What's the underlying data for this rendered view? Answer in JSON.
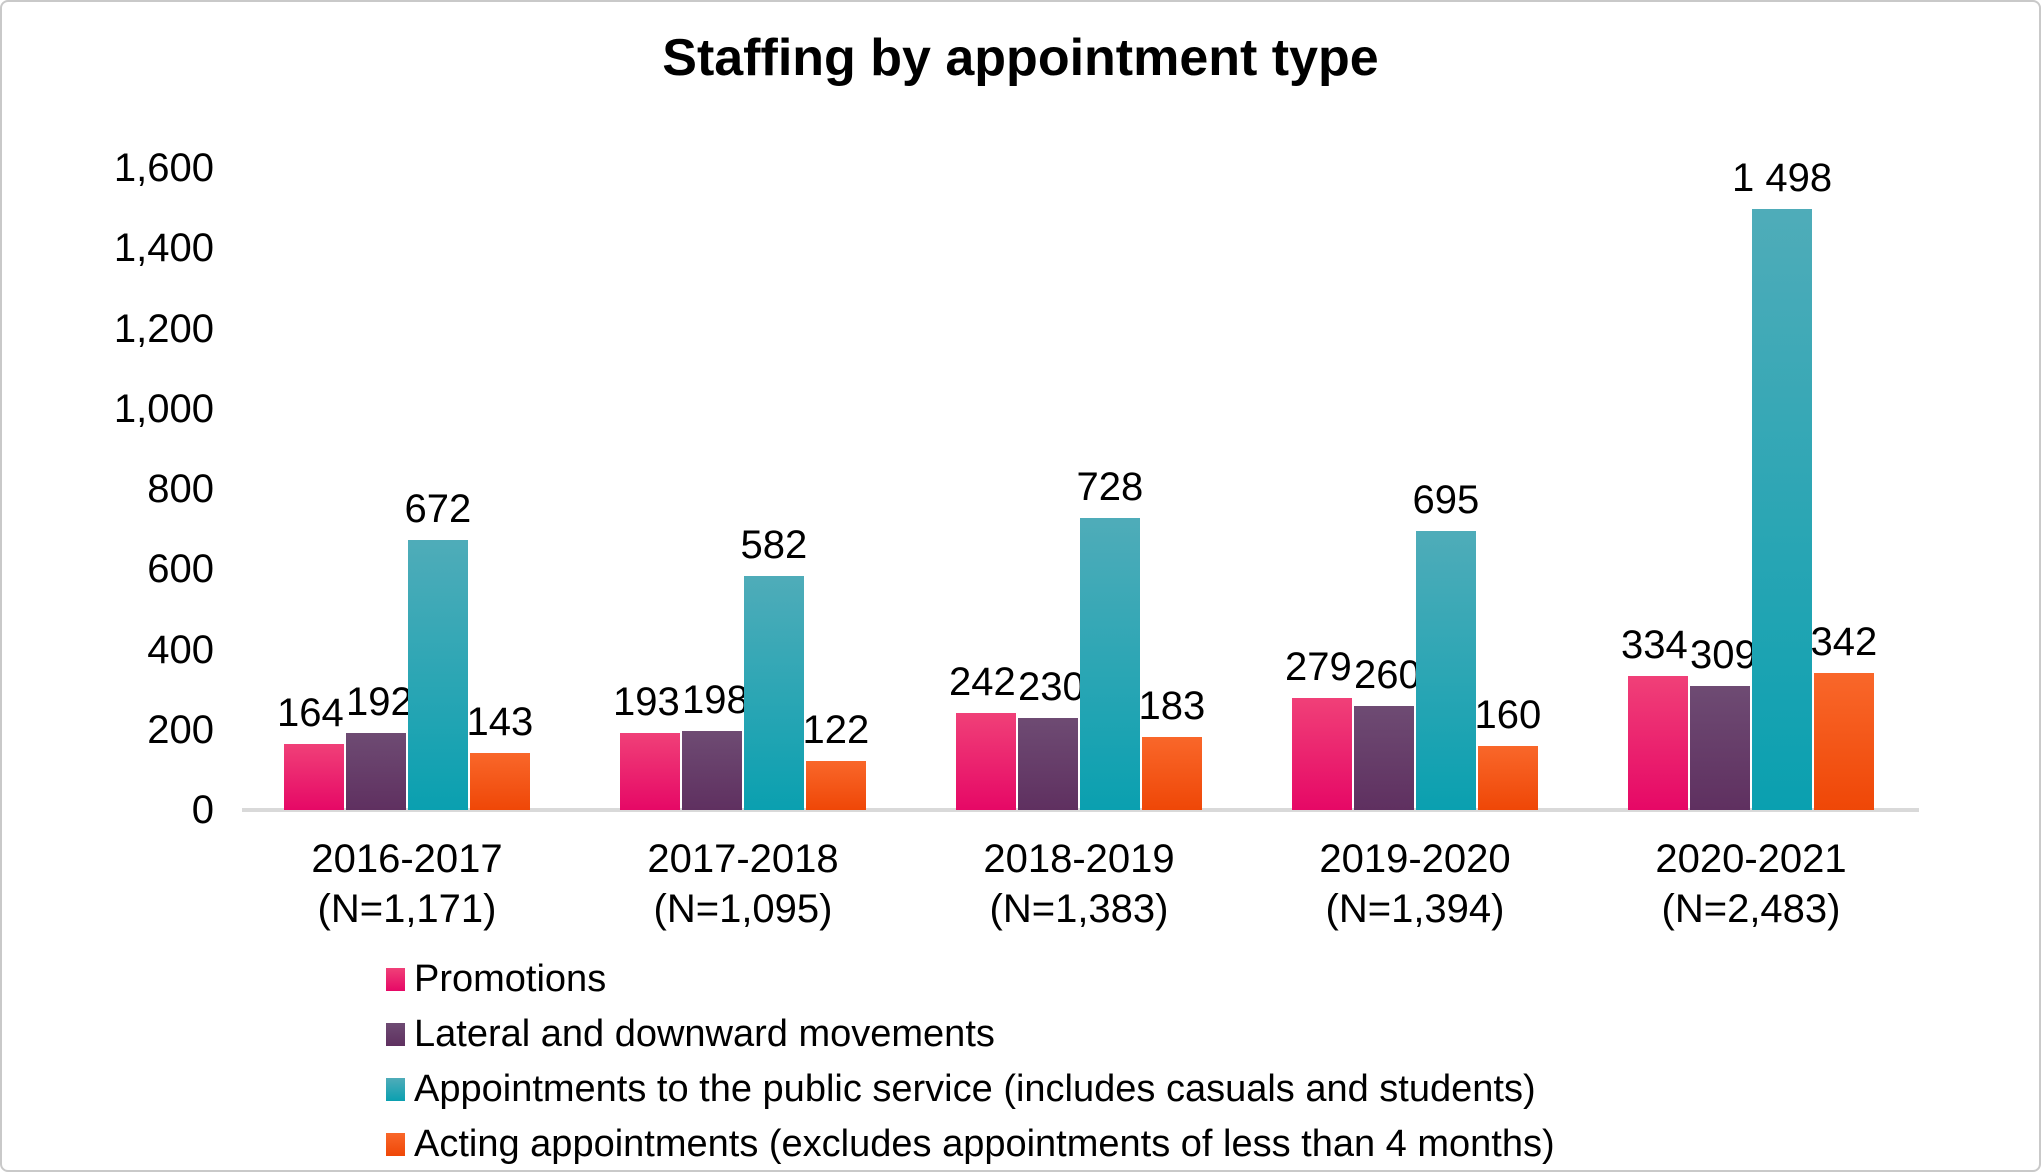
{
  "chart_data": {
    "type": "bar",
    "title": "Staffing by appointment type",
    "categories": [
      {
        "year": "2016-2017",
        "n": "(N=1,171)"
      },
      {
        "year": "2017-2018",
        "n": "(N=1,095)"
      },
      {
        "year": "2018-2019",
        "n": "(N=1,383)"
      },
      {
        "year": "2019-2020",
        "n": "(N=1,394)"
      },
      {
        "year": "2020-2021",
        "n": "(N=2,483)"
      }
    ],
    "series": [
      {
        "name": "Promotions",
        "values": [
          164,
          193,
          242,
          279,
          334
        ],
        "labels": [
          "164",
          "193",
          "242",
          "279",
          "334"
        ],
        "color_top": "#F04078",
        "color_bottom": "#E60866"
      },
      {
        "name": "Lateral and downward movements",
        "values": [
          192,
          198,
          230,
          260,
          309
        ],
        "labels": [
          "192",
          "198",
          "230",
          "260",
          "309"
        ],
        "color_top": "#6E4B73",
        "color_bottom": "#5F3060"
      },
      {
        "name": "Appointments to the public service (includes casuals and students)",
        "values": [
          672,
          582,
          728,
          695,
          1498
        ],
        "labels": [
          "672",
          "582",
          "728",
          "695",
          "1 498"
        ],
        "color_top": "#4FACB9",
        "color_bottom": "#0AA0B0"
      },
      {
        "name": "Acting appointments (excludes appointments of less than 4 months)",
        "values": [
          143,
          122,
          183,
          160,
          342
        ],
        "labels": [
          "143",
          "122",
          "183",
          "160",
          "342"
        ],
        "color_top": "#F9672A",
        "color_bottom": "#EF4707"
      }
    ],
    "y_axis": {
      "min": 0,
      "max": 1600,
      "tick_step": 200,
      "ticks": [
        "1,600",
        "1,400",
        "1,200",
        "1,000",
        "800",
        "600",
        "400",
        "200",
        "0"
      ]
    },
    "grid": false,
    "legend_position": "bottom-left",
    "colors": {
      "axis_line": "#D9D9D9",
      "text": "#000000",
      "background": "#FFFFFF",
      "border": "#C9C9C9"
    }
  }
}
